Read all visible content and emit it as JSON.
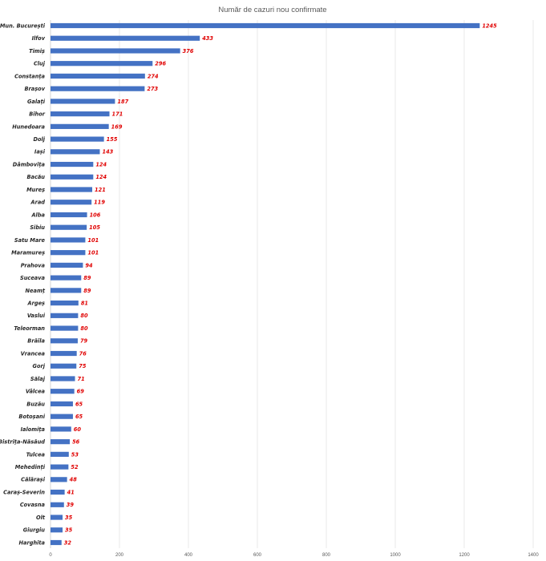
{
  "chart_data": {
    "type": "bar",
    "orientation": "horizontal",
    "title": "Număr de cazuri nou confirmate",
    "xlabel": "",
    "ylabel": "",
    "xlim": [
      0,
      1400
    ],
    "x_ticks": [
      0,
      200,
      400,
      600,
      800,
      1000,
      1200,
      1400
    ],
    "grid": "vertical",
    "legend": "none",
    "bar_color": "#4472c4",
    "label_color": "#e00000",
    "categories": [
      "Mun. București",
      "Ilfov",
      "Timiș",
      "Cluj",
      "Constanța",
      "Brașov",
      "Galați",
      "Bihor",
      "Hunedoara",
      "Dolj",
      "Iași",
      "Dâmbovița",
      "Bacău",
      "Mureș",
      "Arad",
      "Alba",
      "Sibiu",
      "Satu Mare",
      "Maramureș",
      "Prahova",
      "Suceava",
      "Neamț",
      "Argeș",
      "Vaslui",
      "Teleorman",
      "Brăila",
      "Vrancea",
      "Gorj",
      "Sălaj",
      "Vâlcea",
      "Buzău",
      "Botoșani",
      "Ialomița",
      "Bistrița-Năsăud",
      "Tulcea",
      "Mehedinți",
      "Călărași",
      "Caraș-Severin",
      "Covasna",
      "Olt",
      "Giurgiu",
      "Harghita"
    ],
    "values": [
      1245,
      433,
      376,
      296,
      274,
      273,
      187,
      171,
      169,
      155,
      143,
      124,
      124,
      121,
      119,
      106,
      105,
      101,
      101,
      94,
      89,
      89,
      81,
      80,
      80,
      79,
      76,
      75,
      71,
      69,
      65,
      65,
      60,
      56,
      53,
      52,
      48,
      41,
      39,
      35,
      35,
      32
    ]
  }
}
